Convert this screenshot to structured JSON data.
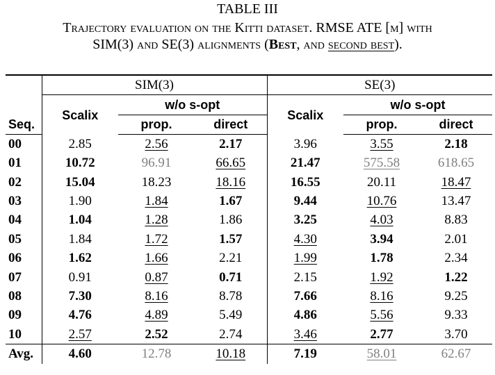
{
  "title": "TABLE III",
  "caption": {
    "part1": "Trajectory evaluation on the ",
    "kitti": "Kitti",
    "part2": " dataset. RMSE ATE [",
    "m": "m",
    "part3": "] with",
    "part4": "SIM(3) and SE(3) alignments (",
    "best": "Best",
    "part5": ", and ",
    "second": "second best",
    "part6": ")."
  },
  "header": {
    "sim3": "SIM(3)",
    "se3": "SE(3)",
    "scalix": "Scalix",
    "wo_sopt": "w/o s-opt",
    "prop": "prop.",
    "direct": "direct",
    "seq": "Seq."
  },
  "rows": [
    {
      "seq": "00",
      "cells": [
        [
          "2.85",
          ""
        ],
        [
          "2.56",
          "u"
        ],
        [
          "2.17",
          "b"
        ],
        [
          "3.96",
          ""
        ],
        [
          "3.55",
          "u"
        ],
        [
          "2.18",
          "b"
        ]
      ]
    },
    {
      "seq": "01",
      "cells": [
        [
          "10.72",
          "b"
        ],
        [
          "96.91",
          "g"
        ],
        [
          "66.65",
          "u"
        ],
        [
          "21.47",
          "b"
        ],
        [
          "575.58",
          "gu"
        ],
        [
          "618.65",
          "g"
        ]
      ]
    },
    {
      "seq": "02",
      "cells": [
        [
          "15.04",
          "b"
        ],
        [
          "18.23",
          ""
        ],
        [
          "18.16",
          "u"
        ],
        [
          "16.55",
          "b"
        ],
        [
          "20.11",
          ""
        ],
        [
          "18.47",
          "u"
        ]
      ]
    },
    {
      "seq": "03",
      "cells": [
        [
          "1.90",
          ""
        ],
        [
          "1.84",
          "u"
        ],
        [
          "1.67",
          "b"
        ],
        [
          "9.44",
          "b"
        ],
        [
          "10.76",
          "u"
        ],
        [
          "13.47",
          ""
        ]
      ]
    },
    {
      "seq": "04",
      "cells": [
        [
          "1.04",
          "b"
        ],
        [
          "1.28",
          "u"
        ],
        [
          "1.86",
          ""
        ],
        [
          "3.25",
          "b"
        ],
        [
          "4.03",
          "u"
        ],
        [
          "8.83",
          ""
        ]
      ]
    },
    {
      "seq": "05",
      "cells": [
        [
          "1.84",
          ""
        ],
        [
          "1.72",
          "u"
        ],
        [
          "1.57",
          "b"
        ],
        [
          "4.30",
          "u"
        ],
        [
          "3.94",
          "b"
        ],
        [
          "2.01",
          ""
        ]
      ]
    },
    {
      "seq": "06",
      "cells": [
        [
          "1.62",
          "b"
        ],
        [
          "1.66",
          "u"
        ],
        [
          "2.21",
          ""
        ],
        [
          "1.99",
          "u"
        ],
        [
          "1.78",
          "b"
        ],
        [
          "2.34",
          ""
        ]
      ]
    },
    {
      "seq": "07",
      "cells": [
        [
          "0.91",
          ""
        ],
        [
          "0.87",
          "u"
        ],
        [
          "0.71",
          "b"
        ],
        [
          "2.15",
          ""
        ],
        [
          "1.92",
          "u"
        ],
        [
          "1.22",
          "b"
        ]
      ]
    },
    {
      "seq": "08",
      "cells": [
        [
          "7.30",
          "b"
        ],
        [
          "8.16",
          "u"
        ],
        [
          "8.78",
          ""
        ],
        [
          "7.66",
          "b"
        ],
        [
          "8.16",
          "u"
        ],
        [
          "9.25",
          ""
        ]
      ]
    },
    {
      "seq": "09",
      "cells": [
        [
          "4.76",
          "b"
        ],
        [
          "4.89",
          "u"
        ],
        [
          "5.49",
          ""
        ],
        [
          "4.86",
          "b"
        ],
        [
          "5.56",
          "u"
        ],
        [
          "9.33",
          ""
        ]
      ]
    },
    {
      "seq": "10",
      "cells": [
        [
          "2.57",
          "u"
        ],
        [
          "2.52",
          "b"
        ],
        [
          "2.74",
          ""
        ],
        [
          "3.46",
          "u"
        ],
        [
          "2.77",
          "b"
        ],
        [
          "3.70",
          ""
        ]
      ]
    }
  ],
  "avg": {
    "seq": "Avg.",
    "cells": [
      [
        "4.60",
        "b"
      ],
      [
        "12.78",
        "g"
      ],
      [
        "10.18",
        "u"
      ],
      [
        "7.19",
        "b"
      ],
      [
        "58.01",
        "gu"
      ],
      [
        "62.67",
        "g"
      ]
    ]
  }
}
